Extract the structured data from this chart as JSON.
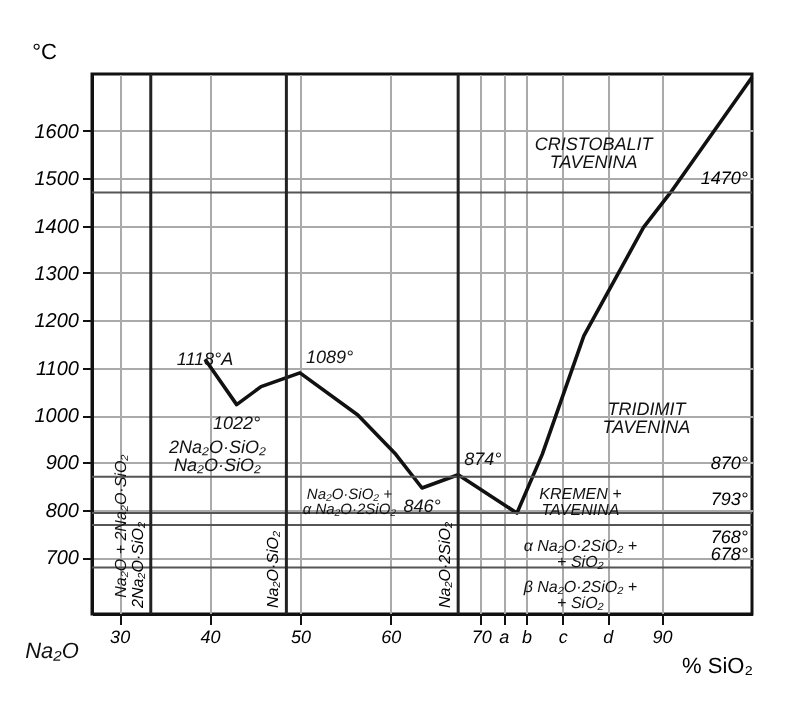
{
  "chart_data": {
    "type": "line",
    "ylabel": "°C",
    "xlabel": "% SiO₂",
    "xlim": [
      27,
      100
    ],
    "ylim": [
      580,
      1720
    ],
    "xticks": [
      30,
      40,
      50,
      60,
      70,
      {
        "value": 72.5,
        "label": "a"
      },
      {
        "value": 75,
        "label": "b"
      },
      {
        "value": 79,
        "label": "c"
      },
      {
        "value": 84,
        "label": "d"
      },
      90
    ],
    "yticks": [
      700,
      800,
      900,
      1000,
      1100,
      1200,
      1300,
      1400,
      1500,
      1600
    ],
    "grid": true,
    "marker": "none",
    "line_style": "solid",
    "series": [
      {
        "color": "#111111",
        "x": [
          39.5,
          43,
          45.7,
          50,
          56.4,
          60.6,
          63.5,
          67.5,
          74,
          76.8,
          81.4,
          88,
          91,
          100
        ],
        "values": [
          1118,
          1022,
          1060,
          1089,
          1000,
          917,
          846,
          874,
          793,
          917,
          1167,
          1396,
          1470,
          1713
        ]
      }
    ],
    "ref_lines": [
      {
        "axis": "y",
        "value": 1470,
        "label": "1470°",
        "color": "#555555"
      },
      {
        "axis": "y",
        "value": 870,
        "label": "870°",
        "color": "#555555"
      },
      {
        "axis": "y",
        "value": 793,
        "label": "793°",
        "color": "#555555"
      },
      {
        "axis": "y",
        "value": 768,
        "label": "768°",
        "color": "#555555"
      },
      {
        "axis": "y",
        "value": 678,
        "label": "678°",
        "color": "#555555"
      },
      {
        "axis": "x",
        "value": 33.5,
        "label": "2Na₂O·SiO₂",
        "color": "#222222"
      },
      {
        "axis": "x",
        "value": 48.5,
        "label": "Na₂O·SiO₂",
        "color": "#222222"
      },
      {
        "axis": "x",
        "value": 67.5,
        "label": "Na₂O·2SiO₂",
        "color": "#222222"
      }
    ],
    "annotations": [
      {
        "text": "1118°A",
        "x": 39.5,
        "y": 1118
      },
      {
        "text": "1022°",
        "x": 43,
        "y": 1022
      },
      {
        "text": "1089°",
        "x": 50,
        "y": 1089
      },
      {
        "text": "846°",
        "x": 63.5,
        "y": 846
      },
      {
        "text": "874°",
        "x": 67.5,
        "y": 874
      },
      "CRISTOBALIT\nTAVENINA",
      "TRIDIMIT\nTAVENINA",
      "KREMEN +\nTAVENINA",
      "2Na₂O·SiO₂\nNa₂O·SiO₂",
      "Na₂O·SiO₂ +\nα Na₂O·2SiO₂",
      "α Na₂O·2SiO₂ +\n+ SiO₂",
      "β Na₂O·2SiO₂ +\n+ SiO₂",
      "Na₂O + 2Na₂O·SiO₂",
      "Na₂O"
    ]
  }
}
